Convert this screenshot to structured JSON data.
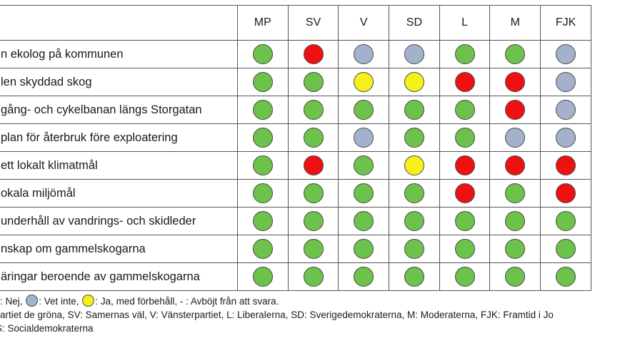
{
  "colors": {
    "green": "#6cc24a",
    "red": "#ee1111",
    "gray": "#a3b2cc",
    "yellow": "#f5ef1a"
  },
  "parties": [
    "MP",
    "SV",
    "V",
    "SD",
    "L",
    "M",
    "FJK"
  ],
  "rows": [
    {
      "label": "n ekolog på kommunen",
      "answers": [
        "green",
        "red",
        "gray",
        "gray",
        "green",
        "green",
        "gray"
      ]
    },
    {
      "label": "len skyddad skog",
      "answers": [
        "green",
        "green",
        "yellow",
        "yellow",
        "red",
        "red",
        "gray"
      ]
    },
    {
      "label": " gång- och cykelbanan längs Storgatan",
      "answers": [
        "green",
        "green",
        "green",
        "green",
        "green",
        "red",
        "gray"
      ]
    },
    {
      "label": "plan för återbruk före exploatering",
      "answers": [
        "green",
        "green",
        "gray",
        "green",
        "green",
        "gray",
        "gray"
      ]
    },
    {
      "label": "ett lokalt klimatmål",
      "answers": [
        "green",
        "red",
        "green",
        "yellow",
        "red",
        "red",
        "red"
      ]
    },
    {
      "label": "okala miljömål",
      "answers": [
        "green",
        "green",
        "green",
        "green",
        "red",
        "green",
        "red"
      ]
    },
    {
      "label": "underhåll av vandrings- och skidleder",
      "answers": [
        "green",
        "green",
        "green",
        "green",
        "green",
        "green",
        "green"
      ]
    },
    {
      "label": "nskap om gammelskogarna",
      "answers": [
        "green",
        "green",
        "green",
        "green",
        "green",
        "green",
        "green"
      ]
    },
    {
      "label": "äringar beroende av gammelskogarna",
      "answers": [
        "green",
        "green",
        "green",
        "green",
        "green",
        "green",
        "green"
      ]
    }
  ],
  "legend": {
    "line1_a": ": Nej, ",
    "line1_b": ": Vet inte, ",
    "line1_c": ": Ja, med förbehåll, - : Avböjt från att svara.",
    "line2": "artiet de gröna, SV: Samernas väl, V: Vänsterpartiet, L: Liberalerna, SD: Sverigedemokraterna, M: Moderaterna, FJK: Framtid i Jo",
    "line3": "S: Socialdemokraterna"
  }
}
